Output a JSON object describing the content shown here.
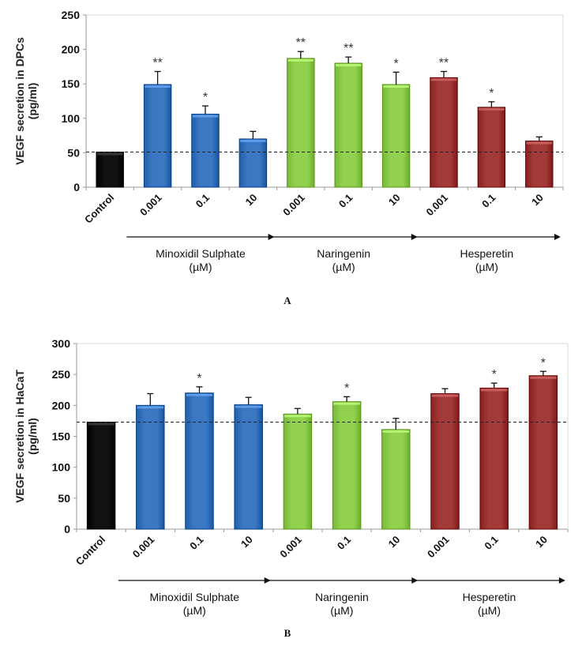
{
  "chart_data": [
    {
      "type": "bar",
      "panel_label": "A",
      "title": "",
      "ylabel": "VEGF secretion in DPCs\n(pg/ml)",
      "ylabel_lines": [
        "VEGF secretion in DPCs",
        "(pg/ml)"
      ],
      "ylim": [
        0,
        250
      ],
      "yticks": [
        0,
        50,
        100,
        150,
        200,
        250
      ],
      "grid": false,
      "categories": [
        "Control",
        "0.001",
        "0.1",
        "10",
        "0.001",
        "0.1",
        "10",
        "0.001",
        "0.1",
        "10"
      ],
      "values": [
        51,
        149,
        106,
        70,
        187,
        180,
        149,
        159,
        116,
        67
      ],
      "errors": [
        0,
        19,
        12,
        11,
        10,
        9,
        18,
        9,
        8,
        6
      ],
      "significance": [
        "",
        "**",
        "*",
        "",
        "**",
        "**",
        "*",
        "**",
        "*",
        ""
      ],
      "bar_colors": [
        "#111111",
        "#3a78c4",
        "#3a78c4",
        "#3a78c4",
        "#92d050",
        "#92d050",
        "#92d050",
        "#a33a3a",
        "#a33a3a",
        "#a33a3a"
      ],
      "reference_line": 51,
      "groups": [
        {
          "name": "Minoxidil Sulphate",
          "unit": "(µM)",
          "categories": [
            1,
            2,
            3
          ]
        },
        {
          "name": "Naringenin",
          "unit": "(µM)",
          "categories": [
            4,
            5,
            6
          ]
        },
        {
          "name": "Hesperetin",
          "unit": "(µM)",
          "categories": [
            7,
            8,
            9
          ]
        }
      ]
    },
    {
      "type": "bar",
      "panel_label": "B",
      "title": "",
      "ylabel": "VEGF secretion in HaCaT\n(pg/ml)",
      "ylabel_lines": [
        "VEGF secretion in HaCaT",
        "(pg/ml)"
      ],
      "ylim": [
        0,
        300
      ],
      "yticks": [
        0,
        50,
        100,
        150,
        200,
        250,
        300
      ],
      "grid": false,
      "categories": [
        "Control",
        "0.001",
        "0.1",
        "10",
        "0.001",
        "0.1",
        "10",
        "0.001",
        "0.1",
        "10"
      ],
      "values": [
        173,
        200,
        220,
        201,
        186,
        206,
        161,
        219,
        228,
        248
      ],
      "errors": [
        0,
        19,
        10,
        12,
        9,
        8,
        18,
        8,
        8,
        7
      ],
      "significance": [
        "",
        "",
        "*",
        "",
        "",
        "*",
        "",
        "",
        "*",
        "*"
      ],
      "bar_colors": [
        "#111111",
        "#3a78c4",
        "#3a78c4",
        "#3a78c4",
        "#92d050",
        "#92d050",
        "#92d050",
        "#a33a3a",
        "#a33a3a",
        "#a33a3a"
      ],
      "reference_line": 173,
      "groups": [
        {
          "name": "Minoxidil Sulphate",
          "unit": "(µM)",
          "categories": [
            1,
            2,
            3
          ]
        },
        {
          "name": "Naringenin",
          "unit": "(µM)",
          "categories": [
            4,
            5,
            6
          ]
        },
        {
          "name": "Hesperetin",
          "unit": "(µM)",
          "categories": [
            7,
            8,
            9
          ]
        }
      ]
    }
  ]
}
